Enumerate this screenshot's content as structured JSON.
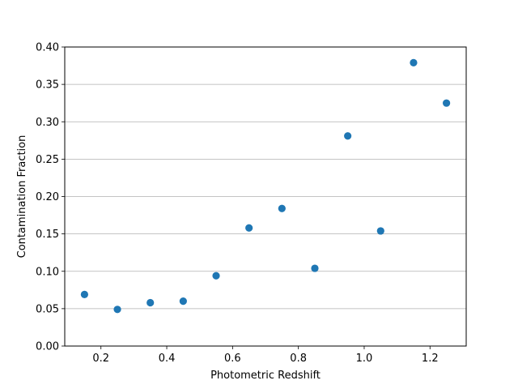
{
  "chart_data": {
    "type": "scatter",
    "title": "",
    "xlabel": "Photometric Redshift",
    "ylabel": "Contamination Fraction",
    "xlim": [
      0.09,
      1.31
    ],
    "ylim": [
      0.0,
      0.4
    ],
    "xticks": [
      0.2,
      0.4,
      0.6,
      0.8,
      1.0,
      1.2
    ],
    "xtick_labels": [
      "0.2",
      "0.4",
      "0.6",
      "0.8",
      "1.0",
      "1.2"
    ],
    "yticks": [
      0.0,
      0.05,
      0.1,
      0.15,
      0.2,
      0.25,
      0.3,
      0.35,
      0.4
    ],
    "ytick_labels": [
      "0.00",
      "0.05",
      "0.10",
      "0.15",
      "0.20",
      "0.25",
      "0.30",
      "0.35",
      "0.40"
    ],
    "grid": "horizontal",
    "legend": "none",
    "marker_color": "#1f77b4",
    "grid_color": "#b0b0b0",
    "points": [
      {
        "x": 0.15,
        "y": 0.069
      },
      {
        "x": 0.25,
        "y": 0.049
      },
      {
        "x": 0.35,
        "y": 0.058
      },
      {
        "x": 0.45,
        "y": 0.06
      },
      {
        "x": 0.55,
        "y": 0.094
      },
      {
        "x": 0.65,
        "y": 0.158
      },
      {
        "x": 0.75,
        "y": 0.184
      },
      {
        "x": 0.85,
        "y": 0.104
      },
      {
        "x": 0.95,
        "y": 0.281
      },
      {
        "x": 1.05,
        "y": 0.154
      },
      {
        "x": 1.15,
        "y": 0.379
      },
      {
        "x": 1.25,
        "y": 0.325
      }
    ]
  }
}
